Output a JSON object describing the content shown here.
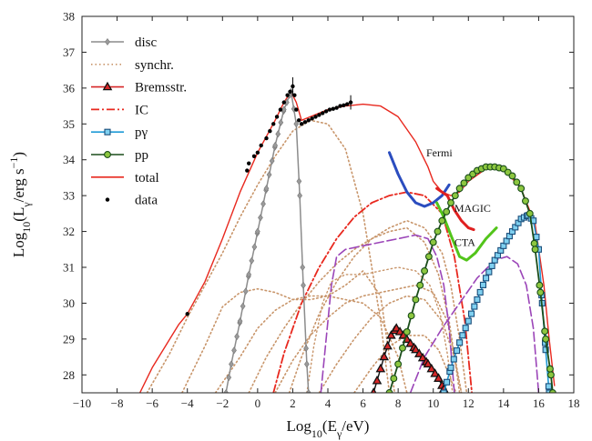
{
  "chart_data": {
    "type": "line",
    "xlabel_parts": [
      "Log",
      "10",
      "(E",
      "γ",
      "/eV)"
    ],
    "ylabel_parts": [
      "Log",
      "10",
      "(L",
      "γ",
      "/erg s",
      "−1",
      ")"
    ],
    "xlim": [
      -10,
      18
    ],
    "ylim": [
      27.5,
      38
    ],
    "xticks": [
      -10,
      -8,
      -6,
      -4,
      -2,
      0,
      2,
      4,
      6,
      8,
      10,
      12,
      14,
      16,
      18
    ],
    "yticks": [
      28,
      29,
      30,
      31,
      32,
      33,
      34,
      35,
      36,
      37,
      38
    ],
    "legend_position": "top-left",
    "legend": [
      {
        "key": "disc",
        "label": "disc",
        "color": "#8c8c8c",
        "style": "solid",
        "marker": "diamond"
      },
      {
        "key": "synchr",
        "label": "synchr.",
        "color": "#c8956a",
        "style": "dotted",
        "marker": "none"
      },
      {
        "key": "brems",
        "label": "Bremsstr.",
        "color": "#d62728",
        "style": "solid",
        "marker": "triangle"
      },
      {
        "key": "ic",
        "label": "IC",
        "color": "#e8281e",
        "style": "dashdot",
        "marker": "none"
      },
      {
        "key": "pgamma",
        "label": "pγ",
        "color": "#1f9ad6",
        "style": "solid",
        "marker": "square"
      },
      {
        "key": "pp",
        "label": "pp",
        "color": "#1a4d1a",
        "style": "solid",
        "marker": "circle"
      },
      {
        "key": "total",
        "label": "total",
        "color": "#e8281e",
        "style": "solid",
        "marker": "none"
      },
      {
        "key": "data",
        "label": "data",
        "color": "#000000",
        "style": "none",
        "marker": "dot"
      }
    ],
    "annotations": [
      "Fermi",
      "MAGIC",
      "CTA"
    ],
    "series": {
      "total": [
        [
          -6.7,
          27.5
        ],
        [
          -6,
          28.2
        ],
        [
          -5,
          29
        ],
        [
          -4.5,
          29.4
        ],
        [
          -4,
          29.7
        ],
        [
          -3,
          30.6
        ],
        [
          -2,
          31.8
        ],
        [
          -1,
          33.1
        ],
        [
          0,
          34.2
        ],
        [
          1,
          35.1
        ],
        [
          1.5,
          35.6
        ],
        [
          1.9,
          35.9
        ],
        [
          2.2,
          35.6
        ],
        [
          2.5,
          35.1
        ],
        [
          3,
          35.2
        ],
        [
          4,
          35.4
        ],
        [
          5,
          35.5
        ],
        [
          6,
          35.55
        ],
        [
          7,
          35.5
        ],
        [
          8,
          35.2
        ],
        [
          9,
          34.5
        ],
        [
          9.7,
          33.8
        ],
        [
          10,
          33.4
        ],
        [
          10.5,
          33.1
        ],
        [
          11,
          33.0
        ],
        [
          11.5,
          33.1
        ],
        [
          12,
          33.4
        ],
        [
          13,
          33.75
        ],
        [
          13.5,
          33.8
        ],
        [
          14,
          33.75
        ],
        [
          15,
          33.2
        ],
        [
          15.8,
          32.2
        ],
        [
          16.3,
          30.5
        ],
        [
          16.6,
          29
        ],
        [
          16.9,
          27.7
        ]
      ],
      "disc": [
        [
          -1.8,
          27.5
        ],
        [
          -1.5,
          28.3
        ],
        [
          -1,
          29.5
        ],
        [
          -0.5,
          30.8
        ],
        [
          0,
          32
        ],
        [
          0.5,
          33.2
        ],
        [
          1,
          34.4
        ],
        [
          1.5,
          35.4
        ],
        [
          1.9,
          35.9
        ],
        [
          2.2,
          35
        ],
        [
          2.4,
          33
        ],
        [
          2.6,
          30.5
        ],
        [
          2.8,
          28.3
        ],
        [
          2.9,
          27.5
        ]
      ],
      "synchr": [
        [
          [
            -6.3,
            27.5
          ],
          [
            -5,
            28.6
          ],
          [
            -4,
            29.6
          ],
          [
            -3,
            30.5
          ],
          [
            -2,
            31.4
          ],
          [
            -1,
            32.4
          ],
          [
            0,
            33.3
          ],
          [
            1,
            34.1
          ],
          [
            2,
            34.8
          ],
          [
            3,
            35.1
          ],
          [
            4,
            35.0
          ],
          [
            5,
            34.3
          ],
          [
            6,
            32.5
          ],
          [
            7,
            29.5
          ],
          [
            7.5,
            27.5
          ]
        ],
        [
          [
            -4.3,
            27.5
          ],
          [
            -3,
            28.8
          ],
          [
            -2,
            29.9
          ],
          [
            -1,
            30.3
          ],
          [
            0,
            30.4
          ],
          [
            1,
            30.3
          ],
          [
            2,
            30.1
          ],
          [
            3,
            30.1
          ],
          [
            4,
            30.2
          ],
          [
            5,
            30.5
          ],
          [
            6,
            30.9
          ],
          [
            7,
            30.2
          ],
          [
            7.5,
            28.5
          ],
          [
            7.8,
            27.5
          ]
        ],
        [
          [
            -2.4,
            27.5
          ],
          [
            -1,
            28.5
          ],
          [
            0,
            29.3
          ],
          [
            1,
            29.8
          ],
          [
            2,
            30.1
          ],
          [
            3,
            30.2
          ],
          [
            4,
            30.2
          ],
          [
            5,
            30.1
          ],
          [
            6,
            30
          ],
          [
            7,
            29.6
          ],
          [
            8,
            28.5
          ],
          [
            8.5,
            27.5
          ]
        ],
        [
          [
            1.8,
            27.5
          ],
          [
            2.5,
            28.5
          ],
          [
            3.5,
            29.7
          ],
          [
            4.5,
            30.6
          ],
          [
            5.5,
            31.3
          ],
          [
            6.5,
            31.8
          ],
          [
            7.5,
            32.1
          ],
          [
            8.5,
            32.3
          ],
          [
            9.5,
            32.1
          ],
          [
            10.5,
            31.4
          ],
          [
            11,
            30.5
          ],
          [
            11.5,
            29
          ],
          [
            11.9,
            27.5
          ]
        ],
        [
          [
            1,
            27.5
          ],
          [
            2,
            28.4
          ],
          [
            3,
            29.1
          ],
          [
            4,
            29.6
          ],
          [
            5,
            30
          ],
          [
            6,
            30.2
          ],
          [
            7,
            30.3
          ],
          [
            8,
            30.4
          ],
          [
            9,
            30.5
          ],
          [
            10,
            30.3
          ],
          [
            10.8,
            29.5
          ],
          [
            11.3,
            28.3
          ],
          [
            11.6,
            27.5
          ]
        ],
        [
          [
            3.5,
            27.5
          ],
          [
            4.5,
            28.3
          ],
          [
            5.5,
            29
          ],
          [
            6.5,
            29.6
          ],
          [
            7.5,
            30
          ],
          [
            8.5,
            30.2
          ],
          [
            9.5,
            30.1
          ],
          [
            10.5,
            29.5
          ],
          [
            11.2,
            28.5
          ],
          [
            11.6,
            27.5
          ]
        ],
        [
          [
            5.5,
            27.5
          ],
          [
            6.5,
            28.2
          ],
          [
            7.5,
            28.8
          ],
          [
            8.5,
            29.1
          ],
          [
            9.5,
            29.1
          ],
          [
            10.3,
            28.7
          ],
          [
            10.9,
            28
          ],
          [
            11.3,
            27.5
          ]
        ],
        [
          [
            -0.5,
            27.5
          ],
          [
            0.5,
            28.5
          ],
          [
            1.5,
            29.3
          ],
          [
            2.5,
            30
          ],
          [
            3.5,
            30.6
          ],
          [
            4.5,
            31.1
          ],
          [
            5.5,
            31.5
          ],
          [
            6.5,
            31.8
          ],
          [
            7.5,
            32
          ],
          [
            8.5,
            32.1
          ],
          [
            9.5,
            31.7
          ],
          [
            10.3,
            30.8
          ],
          [
            10.9,
            29.5
          ],
          [
            11.3,
            28.2
          ],
          [
            11.5,
            27.5
          ]
        ]
      ],
      "ic": [
        [
          [
            0.9,
            27.5
          ],
          [
            1.5,
            28.6
          ],
          [
            2.5,
            30
          ],
          [
            3.5,
            31
          ],
          [
            4.5,
            31.8
          ],
          [
            5.5,
            32.4
          ],
          [
            6.5,
            32.8
          ],
          [
            7.5,
            33.0
          ],
          [
            8.5,
            33.1
          ],
          [
            9.5,
            33
          ],
          [
            10.5,
            32.5
          ],
          [
            11.2,
            31.3
          ],
          [
            11.8,
            29.5
          ],
          [
            12.2,
            27.5
          ]
        ],
        [
          [
            3.6,
            27.5
          ],
          [
            3.9,
            29
          ],
          [
            4.2,
            30.5
          ],
          [
            4.5,
            31.3
          ],
          [
            5,
            31.5
          ],
          [
            6,
            31.6
          ],
          [
            7,
            31.7
          ],
          [
            8,
            31.8
          ],
          [
            9,
            31.9
          ],
          [
            9.7,
            31.8
          ],
          [
            10.2,
            31.3
          ],
          [
            10.6,
            30.5
          ],
          [
            10.9,
            29.3
          ],
          [
            11.2,
            27.5
          ]
        ],
        [
          [
            8.7,
            27.5
          ],
          [
            9.5,
            28.5
          ],
          [
            10.5,
            29.3
          ],
          [
            11.5,
            30
          ],
          [
            12.5,
            30.7
          ],
          [
            13.5,
            31.2
          ],
          [
            14.2,
            31.3
          ],
          [
            14.8,
            31.1
          ],
          [
            15.3,
            30.5
          ],
          [
            15.7,
            29.3
          ],
          [
            16,
            27.5
          ]
        ],
        [
          [
            2.8,
            27.5
          ],
          [
            3.2,
            28.8
          ],
          [
            3.7,
            30
          ],
          [
            4.2,
            30.6
          ],
          [
            5,
            30.8
          ],
          [
            6,
            30.8
          ],
          [
            7,
            30.9
          ],
          [
            8,
            31
          ],
          [
            9,
            30.9
          ],
          [
            9.8,
            30.5
          ],
          [
            10.4,
            29.7
          ],
          [
            10.8,
            28.6
          ],
          [
            11.1,
            27.5
          ]
        ]
      ],
      "brems": [
        [
          6.6,
          27.5
        ],
        [
          7.2,
          28.5
        ],
        [
          7.6,
          29.1
        ],
        [
          7.9,
          29.3
        ],
        [
          8.3,
          29.1
        ],
        [
          9,
          28.7
        ],
        [
          9.7,
          28.3
        ],
        [
          10.3,
          27.9
        ],
        [
          10.6,
          27.6
        ]
      ],
      "pp": [
        [
          7.5,
          27.5
        ],
        [
          8,
          28.3
        ],
        [
          8.5,
          29.2
        ],
        [
          9,
          30.1
        ],
        [
          9.5,
          30.9
        ],
        [
          10,
          31.7
        ],
        [
          10.5,
          32.3
        ],
        [
          11,
          32.8
        ],
        [
          11.5,
          33.2
        ],
        [
          12,
          33.5
        ],
        [
          12.5,
          33.7
        ],
        [
          13,
          33.8
        ],
        [
          13.5,
          33.8
        ],
        [
          14,
          33.75
        ],
        [
          14.5,
          33.55
        ],
        [
          15,
          33.2
        ],
        [
          15.5,
          32.5
        ],
        [
          15.8,
          31.5
        ],
        [
          16.1,
          30.3
        ],
        [
          16.4,
          29
        ],
        [
          16.7,
          28
        ],
        [
          16.8,
          27.5
        ]
      ],
      "pgamma": [
        [
          10.6,
          27.5
        ],
        [
          11,
          28.2
        ],
        [
          11.5,
          28.9
        ],
        [
          12,
          29.5
        ],
        [
          12.5,
          30.1
        ],
        [
          13,
          30.7
        ],
        [
          13.5,
          31.2
        ],
        [
          14,
          31.6
        ],
        [
          14.5,
          32
        ],
        [
          15,
          32.35
        ],
        [
          15.4,
          32.45
        ],
        [
          15.7,
          32.3
        ],
        [
          16,
          31.5
        ],
        [
          16.2,
          30
        ],
        [
          16.4,
          28.7
        ],
        [
          16.6,
          27.5
        ]
      ],
      "fermi": [
        [
          7.5,
          34.2
        ],
        [
          8,
          33.6
        ],
        [
          8.5,
          33.1
        ],
        [
          9,
          32.8
        ],
        [
          9.5,
          32.7
        ],
        [
          10,
          32.8
        ],
        [
          10.5,
          33
        ],
        [
          10.9,
          33.3
        ]
      ],
      "magic": [
        [
          10.2,
          33.2
        ],
        [
          10.8,
          33
        ],
        [
          11.2,
          32.6
        ],
        [
          11.6,
          32.3
        ],
        [
          12,
          32.1
        ],
        [
          12.3,
          32.05
        ]
      ],
      "cta": [
        [
          10.2,
          32.8
        ],
        [
          10.6,
          32.4
        ],
        [
          11,
          31.9
        ],
        [
          11.5,
          31.3
        ],
        [
          11.9,
          31.2
        ],
        [
          12.4,
          31.4
        ],
        [
          13,
          31.8
        ],
        [
          13.6,
          32.1
        ]
      ],
      "data_points": [
        [
          -4,
          29.7
        ],
        [
          -0.6,
          33.7
        ],
        [
          -0.5,
          33.9
        ],
        [
          -0.2,
          34.1
        ],
        [
          0,
          34.2
        ],
        [
          0.2,
          34.4
        ],
        [
          0.5,
          34.6
        ],
        [
          0.7,
          34.8
        ],
        [
          0.9,
          35.0
        ],
        [
          1.1,
          35.2
        ],
        [
          1.3,
          35.4
        ],
        [
          1.5,
          35.6
        ],
        [
          1.7,
          35.8
        ],
        [
          1.85,
          35.9
        ],
        [
          2,
          36.05
        ],
        [
          2.1,
          35.8
        ],
        [
          2.2,
          35.4
        ],
        [
          2.35,
          35.1
        ],
        [
          2.5,
          35.0
        ],
        [
          2.7,
          35.05
        ],
        [
          2.9,
          35.1
        ],
        [
          3.1,
          35.15
        ],
        [
          3.3,
          35.2
        ],
        [
          3.5,
          35.25
        ],
        [
          3.7,
          35.3
        ],
        [
          3.9,
          35.35
        ],
        [
          4.1,
          35.4
        ],
        [
          4.3,
          35.42
        ],
        [
          4.5,
          35.45
        ],
        [
          4.7,
          35.5
        ],
        [
          4.9,
          35.52
        ],
        [
          5.1,
          35.55
        ],
        [
          5.3,
          35.6
        ]
      ]
    }
  }
}
